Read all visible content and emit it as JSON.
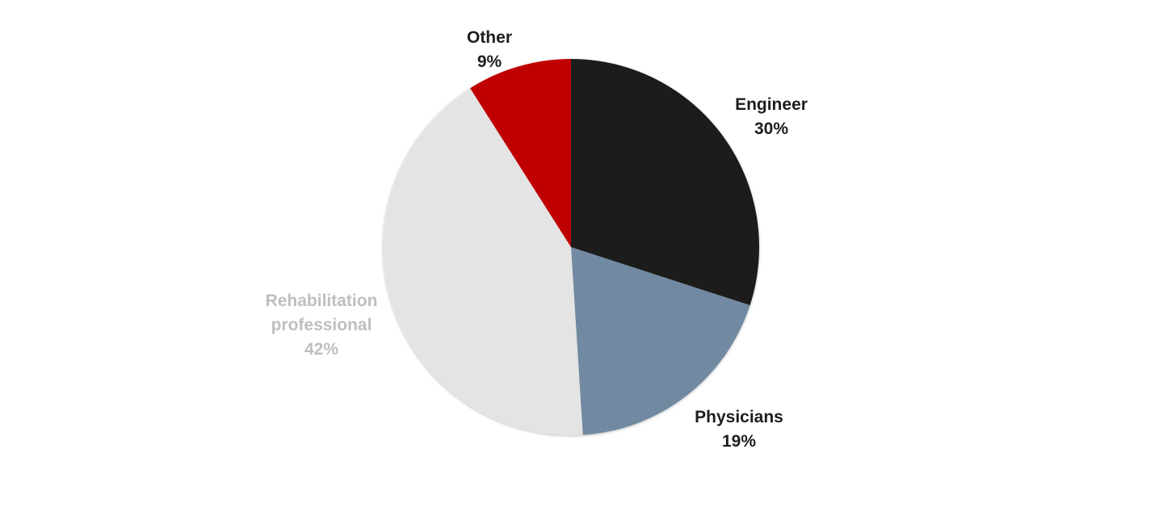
{
  "chart_data": {
    "type": "pie",
    "title": "",
    "categories": [
      "Engineer",
      "Physicians",
      "Rehabilitation professional",
      "Other"
    ],
    "values": [
      30,
      19,
      42,
      9
    ],
    "value_labels": [
      "30%",
      "19%",
      "42%",
      "9%"
    ],
    "label_lines": [
      [
        "Engineer"
      ],
      [
        "Physicians"
      ],
      [
        "Rehabilitation",
        "professional"
      ],
      [
        "Other"
      ]
    ],
    "colors": [
      "#1e1e1e",
      "#718aa1",
      "#e4e4e4",
      "#c00000"
    ],
    "label_colors": [
      "#1e1e1e",
      "#1e1e1e",
      "#bfbfbf",
      "#1e1e1e"
    ],
    "start_angle": "12 o'clock",
    "direction": "clockwise",
    "legend": "none",
    "labels_placement": "outside"
  }
}
